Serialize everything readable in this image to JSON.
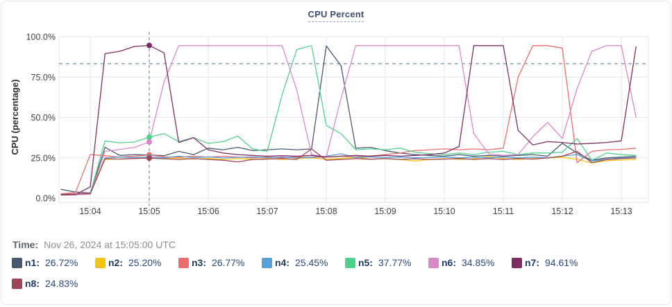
{
  "time": {
    "label": "Time:",
    "value": "Nov 26, 2024 at 15:05:00 UTC"
  },
  "legend": {
    "items": [
      {
        "name": "n1",
        "value": "26.72%",
        "color": "#47586e"
      },
      {
        "name": "n2",
        "value": "25.20%",
        "color": "#f3c40f"
      },
      {
        "name": "n3",
        "value": "26.77%",
        "color": "#ee6c6c"
      },
      {
        "name": "n4",
        "value": "25.45%",
        "color": "#58a0d8"
      },
      {
        "name": "n5",
        "value": "37.77%",
        "color": "#4fd28e"
      },
      {
        "name": "n6",
        "value": "34.85%",
        "color": "#d987c9"
      },
      {
        "name": "n7",
        "value": "94.61%",
        "color": "#7c2c62"
      },
      {
        "name": "n8",
        "value": "24.83%",
        "color": "#9e4558"
      }
    ]
  },
  "chart_data": {
    "type": "line",
    "title": "CPU Percent",
    "ylabel": "CPU (percentage)",
    "ylim": [
      0,
      100
    ],
    "y_ticks": [
      {
        "label": "0.0%",
        "value": 0
      },
      {
        "label": "25.0%",
        "value": 25
      },
      {
        "label": "50.0%",
        "value": 50
      },
      {
        "label": "75.0%",
        "value": 75
      },
      {
        "label": "100.0%",
        "value": 100
      }
    ],
    "x_ticks": [
      "15:04",
      "15:05",
      "15:06",
      "15:07",
      "15:08",
      "15:09",
      "15:10",
      "15:11",
      "15:12",
      "15:13"
    ],
    "x_start": "15:03:30",
    "x_step_seconds": 15,
    "threshold_percent": 83.3,
    "marker_index": 6,
    "marker_time": "15:05:00",
    "grid": true,
    "legend_position": "bottom",
    "series": [
      {
        "name": "n1",
        "color": "#47586e",
        "values": [
          5.5,
          3.8,
          3.2,
          31.5,
          26.5,
          27,
          26.72,
          26.3,
          29,
          27,
          31,
          30,
          31.5,
          29.5,
          30,
          30.5,
          30,
          30.5,
          94.3,
          82,
          31,
          31.5,
          29.5,
          28,
          27,
          26.5,
          26,
          27,
          26,
          26.5,
          26,
          26.5,
          27,
          26,
          34,
          28,
          23.5,
          25,
          25.5,
          26
        ]
      },
      {
        "name": "n2",
        "color": "#f3c40f",
        "values": [
          2.2,
          2.4,
          2.6,
          24,
          24.3,
          24.6,
          25.2,
          24.4,
          25,
          24.2,
          24.6,
          24,
          24.5,
          24.1,
          24.6,
          24,
          24.4,
          25,
          24.2,
          24.6,
          25.4,
          24.2,
          24.6,
          24,
          23,
          24,
          24.5,
          24,
          24.4,
          25.8,
          24.5,
          24,
          24.5,
          25,
          25.4,
          24,
          21.8,
          23.2,
          23.6,
          24
        ]
      },
      {
        "name": "n3",
        "color": "#ee6c6c",
        "values": [
          2.6,
          3.5,
          27,
          26.3,
          25.5,
          26,
          26.77,
          25.6,
          25.4,
          26,
          25.5,
          26,
          25.4,
          25,
          25.5,
          25.2,
          25.6,
          25.2,
          25.6,
          26,
          25.6,
          26.2,
          27,
          28,
          29.5,
          30,
          30.5,
          30,
          30.5,
          30,
          31,
          75,
          94.5,
          94.5,
          93,
          22,
          29,
          30,
          30.2,
          31
        ]
      },
      {
        "name": "n4",
        "color": "#58a0d8",
        "values": [
          2,
          2.2,
          2.4,
          25,
          25.5,
          25.2,
          25.45,
          25,
          26,
          25.2,
          25.6,
          25,
          25.3,
          25.6,
          25.1,
          25.5,
          25,
          25.4,
          26,
          27.5,
          25.2,
          25.6,
          25.1,
          25.5,
          25,
          25.2,
          25.6,
          25,
          25.4,
          25,
          25.5,
          25,
          25.4,
          25,
          26,
          27,
          23,
          24.2,
          25,
          25.2
        ]
      },
      {
        "name": "n5",
        "color": "#4fd28e",
        "values": [
          2.2,
          2.3,
          3,
          35.5,
          34.3,
          34.8,
          37.77,
          40,
          35,
          37.5,
          34,
          35,
          38.5,
          30.5,
          29,
          64,
          92,
          94.5,
          45,
          40,
          30,
          30.5,
          30,
          31,
          28.5,
          27.5,
          27,
          28,
          27,
          28.5,
          29,
          27,
          28,
          28,
          28.5,
          37,
          23.5,
          28,
          27,
          26.5
        ]
      },
      {
        "name": "n6",
        "color": "#d987c9",
        "values": [
          2,
          2.1,
          2.5,
          29,
          30.2,
          31.5,
          34.85,
          72,
          94.5,
          94.5,
          94.5,
          94.5,
          94.5,
          94.5,
          94.5,
          94.5,
          67,
          27,
          25.5,
          62,
          94.5,
          94.5,
          94.5,
          94.5,
          94.5,
          94.5,
          94.5,
          94.5,
          40,
          27.5,
          26.5,
          27,
          38,
          47,
          37,
          68,
          91,
          94.5,
          94.5,
          50
        ]
      },
      {
        "name": "n7",
        "color": "#7c2c62",
        "values": [
          2,
          2.2,
          7,
          89.5,
          91,
          94,
          94.61,
          90,
          34.5,
          37.5,
          30,
          28,
          27,
          26.5,
          26,
          26.3,
          26,
          26.5,
          25.5,
          26,
          26.5,
          26,
          26.5,
          26,
          26.5,
          27,
          28,
          32,
          94.5,
          94.5,
          94.5,
          42,
          33,
          35,
          34.5,
          33.5,
          34,
          34.5,
          35.5,
          94
        ]
      },
      {
        "name": "n8",
        "color": "#9e4558",
        "values": [
          2.4,
          2.6,
          3,
          24.5,
          24.2,
          24.6,
          24.83,
          24.4,
          24,
          24.5,
          24,
          23.5,
          22.5,
          24,
          24.2,
          24.6,
          24,
          30.5,
          23.5,
          24,
          24.5,
          24.1,
          24.5,
          24,
          24.4,
          24,
          24.2,
          24.6,
          24,
          24.5,
          24,
          24.6,
          24.2,
          25,
          26,
          29,
          22,
          24,
          24.5,
          25
        ]
      }
    ]
  }
}
